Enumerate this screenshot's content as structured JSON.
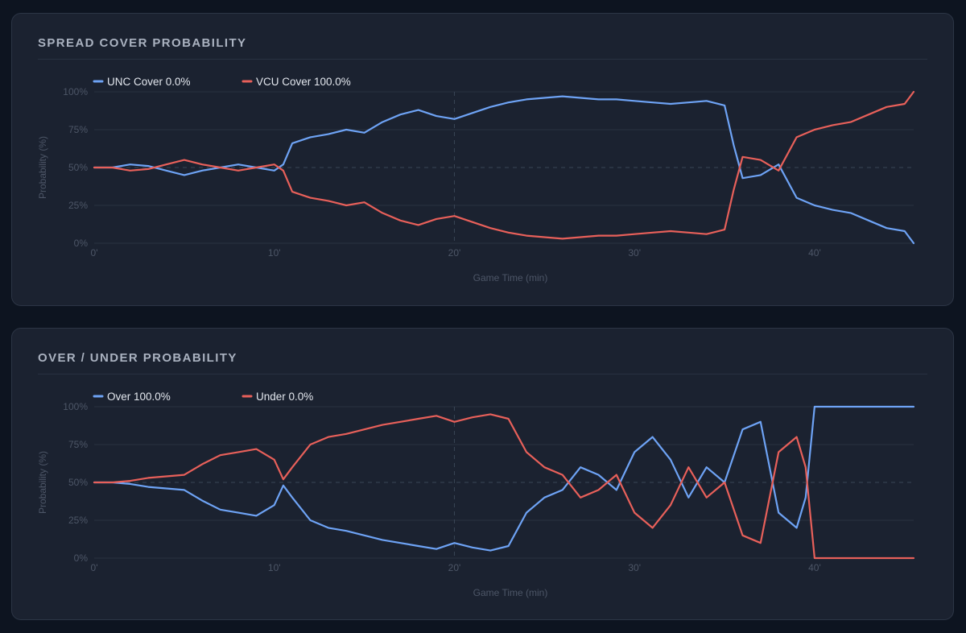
{
  "colors": {
    "blue": "#6ea3f5",
    "red": "#e8605a",
    "grid": "#283141",
    "grid_mid": "#3a4556"
  },
  "chart_data": [
    {
      "id": "spread",
      "type": "line",
      "title": "SPREAD COVER PROBABILITY",
      "xlabel": "Game Time (min)",
      "ylabel": "Probability (%)",
      "xlim": [
        0,
        45.5
      ],
      "ylim": [
        0,
        100
      ],
      "x_ticks": [
        "0'",
        "10'",
        "20'",
        "30'",
        "40'"
      ],
      "x_tick_values": [
        0,
        10,
        20,
        30,
        40
      ],
      "y_ticks": [
        "0%",
        "25%",
        "50%",
        "75%",
        "100%"
      ],
      "y_tick_values": [
        0,
        25,
        50,
        75,
        100
      ],
      "series": [
        {
          "name": "UNC Cover",
          "legend": "UNC Cover 0.0%",
          "color": "#6ea3f5",
          "x": [
            0,
            1,
            2,
            3,
            4,
            5,
            6,
            7,
            8,
            9,
            10,
            10.5,
            11,
            12,
            13,
            14,
            15,
            16,
            17,
            18,
            19,
            20,
            21,
            22,
            23,
            24,
            25,
            26,
            27,
            28,
            29,
            30,
            31,
            32,
            33,
            34,
            35,
            35.5,
            36,
            37,
            38,
            39,
            40,
            41,
            42,
            43,
            44,
            45,
            45.5
          ],
          "y": [
            50,
            50,
            52,
            51,
            48,
            45,
            48,
            50,
            52,
            50,
            48,
            52,
            66,
            70,
            72,
            75,
            73,
            80,
            85,
            88,
            84,
            82,
            86,
            90,
            93,
            95,
            96,
            97,
            96,
            95,
            95,
            94,
            93,
            92,
            93,
            94,
            91,
            65,
            43,
            45,
            52,
            30,
            25,
            22,
            20,
            15,
            10,
            8,
            0
          ]
        },
        {
          "name": "VCU Cover",
          "legend": "VCU Cover 100.0%",
          "color": "#e8605a",
          "x": [
            0,
            1,
            2,
            3,
            4,
            5,
            6,
            7,
            8,
            9,
            10,
            10.5,
            11,
            12,
            13,
            14,
            15,
            16,
            17,
            18,
            19,
            20,
            21,
            22,
            23,
            24,
            25,
            26,
            27,
            28,
            29,
            30,
            31,
            32,
            33,
            34,
            35,
            35.5,
            36,
            37,
            38,
            39,
            40,
            41,
            42,
            43,
            44,
            45,
            45.5
          ],
          "y": [
            50,
            50,
            48,
            49,
            52,
            55,
            52,
            50,
            48,
            50,
            52,
            48,
            34,
            30,
            28,
            25,
            27,
            20,
            15,
            12,
            16,
            18,
            14,
            10,
            7,
            5,
            4,
            3,
            4,
            5,
            5,
            6,
            7,
            8,
            7,
            6,
            9,
            35,
            57,
            55,
            48,
            70,
            75,
            78,
            80,
            85,
            90,
            92,
            100
          ]
        }
      ]
    },
    {
      "id": "ou",
      "type": "line",
      "title": "OVER / UNDER PROBABILITY",
      "xlabel": "Game Time (min)",
      "ylabel": "Probability (%)",
      "xlim": [
        0,
        45.5
      ],
      "ylim": [
        0,
        100
      ],
      "x_ticks": [
        "0'",
        "10'",
        "20'",
        "30'",
        "40'"
      ],
      "x_tick_values": [
        0,
        10,
        20,
        30,
        40
      ],
      "y_ticks": [
        "0%",
        "25%",
        "50%",
        "75%",
        "100%"
      ],
      "y_tick_values": [
        0,
        25,
        50,
        75,
        100
      ],
      "series": [
        {
          "name": "Over",
          "legend": "Over 100.0%",
          "color": "#6ea3f5",
          "x": [
            0,
            1,
            2,
            3,
            4,
            5,
            6,
            7,
            8,
            9,
            10,
            10.5,
            11,
            12,
            13,
            14,
            15,
            16,
            17,
            18,
            19,
            20,
            21,
            22,
            23,
            24,
            25,
            26,
            27,
            28,
            29,
            30,
            31,
            32,
            33,
            34,
            35,
            36,
            37,
            38,
            39,
            39.5,
            40,
            41,
            42,
            43,
            44,
            45,
            45.5
          ],
          "y": [
            50,
            50,
            49,
            47,
            46,
            45,
            38,
            32,
            30,
            28,
            35,
            48,
            40,
            25,
            20,
            18,
            15,
            12,
            10,
            8,
            6,
            10,
            7,
            5,
            8,
            30,
            40,
            45,
            60,
            55,
            45,
            70,
            80,
            65,
            40,
            60,
            50,
            85,
            90,
            30,
            20,
            40,
            100,
            100,
            100,
            100,
            100,
            100,
            100
          ]
        },
        {
          "name": "Under",
          "legend": "Under 0.0%",
          "color": "#e8605a",
          "x": [
            0,
            1,
            2,
            3,
            4,
            5,
            6,
            7,
            8,
            9,
            10,
            10.5,
            11,
            12,
            13,
            14,
            15,
            16,
            17,
            18,
            19,
            20,
            21,
            22,
            23,
            24,
            25,
            26,
            27,
            28,
            29,
            30,
            31,
            32,
            33,
            34,
            35,
            36,
            37,
            38,
            39,
            39.5,
            40,
            41,
            42,
            43,
            44,
            45,
            45.5
          ],
          "y": [
            50,
            50,
            51,
            53,
            54,
            55,
            62,
            68,
            70,
            72,
            65,
            52,
            60,
            75,
            80,
            82,
            85,
            88,
            90,
            92,
            94,
            90,
            93,
            95,
            92,
            70,
            60,
            55,
            40,
            45,
            55,
            30,
            20,
            35,
            60,
            40,
            50,
            15,
            10,
            70,
            80,
            60,
            0,
            0,
            0,
            0,
            0,
            0,
            0
          ]
        }
      ]
    }
  ]
}
